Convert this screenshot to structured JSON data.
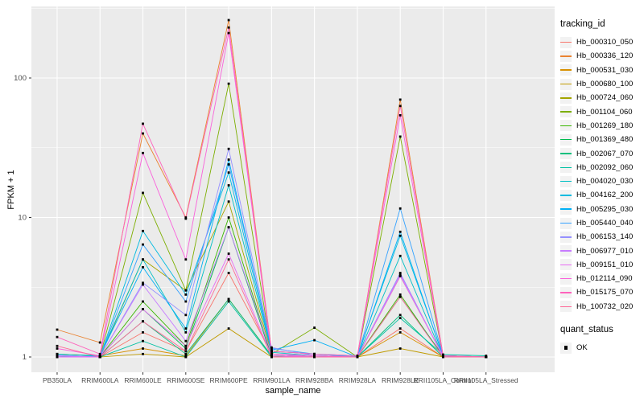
{
  "style": {
    "panel_bg": "#EBEBEB",
    "grid_color": "#FFFFFF",
    "axis_text_color": "#4D4D4D",
    "tick_mark_color": "#333333",
    "point_color": "#000000",
    "legend_key_bg": "#F2F2F2"
  },
  "chart_data": {
    "type": "line",
    "title": "",
    "xlabel": "sample_name",
    "ylabel": "FPKM + 1",
    "y_scale": "log10",
    "ylim": [
      0.76,
      327
    ],
    "grid": "on",
    "legend_position": "right",
    "y_ticks": [
      1,
      10,
      100
    ],
    "y_tick_labels": [
      "1",
      "10",
      "100"
    ],
    "x_categories": [
      "PB350LA",
      "RRIM600LA",
      "RRIM600LE",
      "RRIM600SE",
      "RRIM600PE",
      "RRIM901LA",
      "RRIM928BA",
      "RRIM928LA",
      "RRIM928LE",
      "RRII105LA_Control",
      "RRII105LA_Stressed"
    ],
    "legend_title": "tracking_id",
    "legend2_title": "quant_status",
    "legend2_items": [
      {
        "label": "OK",
        "marker": "black-square"
      }
    ],
    "series": [
      {
        "name": "Hb_000310_050",
        "color": "#F8766D",
        "values": [
          1.02,
          1.0,
          1.5,
          1.1,
          4.0,
          1.05,
          1.02,
          1.0,
          1.6,
          1.0,
          1.0
        ]
      },
      {
        "name": "Hb_000336_120",
        "color": "#EA8331",
        "values": [
          1.57,
          1.27,
          40,
          10,
          260,
          1.1,
          1.05,
          1.0,
          70,
          1.02,
          1.0
        ]
      },
      {
        "name": "Hb_000531_030",
        "color": "#D89000",
        "values": [
          1.05,
          1.02,
          1.15,
          1.02,
          2.6,
          1.02,
          1.0,
          1.0,
          1.5,
          1.0,
          1.0
        ]
      },
      {
        "name": "Hb_000680_100",
        "color": "#C09B00",
        "values": [
          1.0,
          1.0,
          1.05,
          1.0,
          1.6,
          1.0,
          1.0,
          1.0,
          1.15,
          1.0,
          1.0
        ]
      },
      {
        "name": "Hb_000724_060",
        "color": "#A3A500",
        "values": [
          1.02,
          1.0,
          5.0,
          3.0,
          13,
          1.05,
          1.0,
          1.0,
          3.8,
          1.02,
          1.0
        ]
      },
      {
        "name": "Hb_001104_060",
        "color": "#7CAE00",
        "values": [
          1.0,
          1.0,
          15,
          3.0,
          91,
          1.05,
          1.62,
          1.0,
          38,
          1.0,
          1.0
        ]
      },
      {
        "name": "Hb_001269_180",
        "color": "#39B600",
        "values": [
          1.02,
          1.0,
          2.5,
          1.2,
          10,
          1.02,
          1.0,
          1.0,
          2.8,
          1.0,
          1.0
        ]
      },
      {
        "name": "Hb_001369_480",
        "color": "#00BB4E",
        "values": [
          1.0,
          1.0,
          2.2,
          1.15,
          8.5,
          1.0,
          1.0,
          1.0,
          2.7,
          1.02,
          1.0
        ]
      },
      {
        "name": "Hb_002067_070",
        "color": "#00BF7D",
        "values": [
          1.03,
          1.0,
          1.8,
          1.05,
          2.6,
          1.02,
          1.0,
          1.0,
          2.0,
          1.0,
          1.0
        ]
      },
      {
        "name": "Hb_002092_060",
        "color": "#00C1A3",
        "values": [
          1.0,
          1.0,
          1.3,
          1.0,
          2.5,
          1.0,
          1.0,
          1.0,
          1.9,
          1.04,
          1.02
        ]
      },
      {
        "name": "Hb_004020_030",
        "color": "#00BFC4",
        "values": [
          1.05,
          1.02,
          5.0,
          1.5,
          17,
          1.08,
          1.02,
          1.0,
          5.3,
          1.0,
          1.0
        ]
      },
      {
        "name": "Hb_004162_200",
        "color": "#00BAE0",
        "values": [
          1.02,
          1.0,
          8.0,
          2.8,
          21,
          1.1,
          1.05,
          1.02,
          7.4,
          1.02,
          1.0
        ]
      },
      {
        "name": "Hb_005295_030",
        "color": "#00B0F6",
        "values": [
          1.0,
          1.02,
          4.4,
          1.6,
          26,
          1.12,
          1.32,
          1.0,
          7.9,
          1.0,
          1.0
        ]
      },
      {
        "name": "Hb_005440_040",
        "color": "#35A2FF",
        "values": [
          1.03,
          1.0,
          6.4,
          2.5,
          24,
          1.15,
          1.05,
          1.0,
          11.6,
          1.02,
          1.0
        ]
      },
      {
        "name": "Hb_006153_140",
        "color": "#9590FF",
        "values": [
          1.0,
          1.0,
          3.4,
          2.0,
          31,
          1.17,
          1.02,
          1.0,
          4.0,
          1.0,
          1.0
        ]
      },
      {
        "name": "Hb_006977_010",
        "color": "#C77CFF",
        "values": [
          1.02,
          1.0,
          3.3,
          1.3,
          8.5,
          1.05,
          1.0,
          1.0,
          3.9,
          1.0,
          1.0
        ]
      },
      {
        "name": "Hb_009151_010",
        "color": "#E76BF3",
        "values": [
          1.0,
          1.0,
          2.2,
          1.2,
          5.5,
          1.02,
          1.0,
          1.0,
          3.8,
          1.02,
          1.0
        ]
      },
      {
        "name": "Hb_012114_090",
        "color": "#FA62DB",
        "values": [
          1.15,
          1.02,
          29,
          5.0,
          210,
          1.05,
          1.02,
          1.0,
          54,
          1.0,
          1.0
        ]
      },
      {
        "name": "Hb_015175_070",
        "color": "#FF62BC",
        "values": [
          1.39,
          1.05,
          47,
          9.8,
          230,
          1.1,
          1.05,
          1.02,
          63,
          1.02,
          1.0
        ]
      },
      {
        "name": "Hb_100732_020",
        "color": "#FF6A98",
        "values": [
          1.2,
          1.0,
          1.8,
          1.1,
          5.0,
          1.0,
          1.0,
          1.0,
          2.7,
          1.0,
          1.0
        ]
      }
    ]
  }
}
